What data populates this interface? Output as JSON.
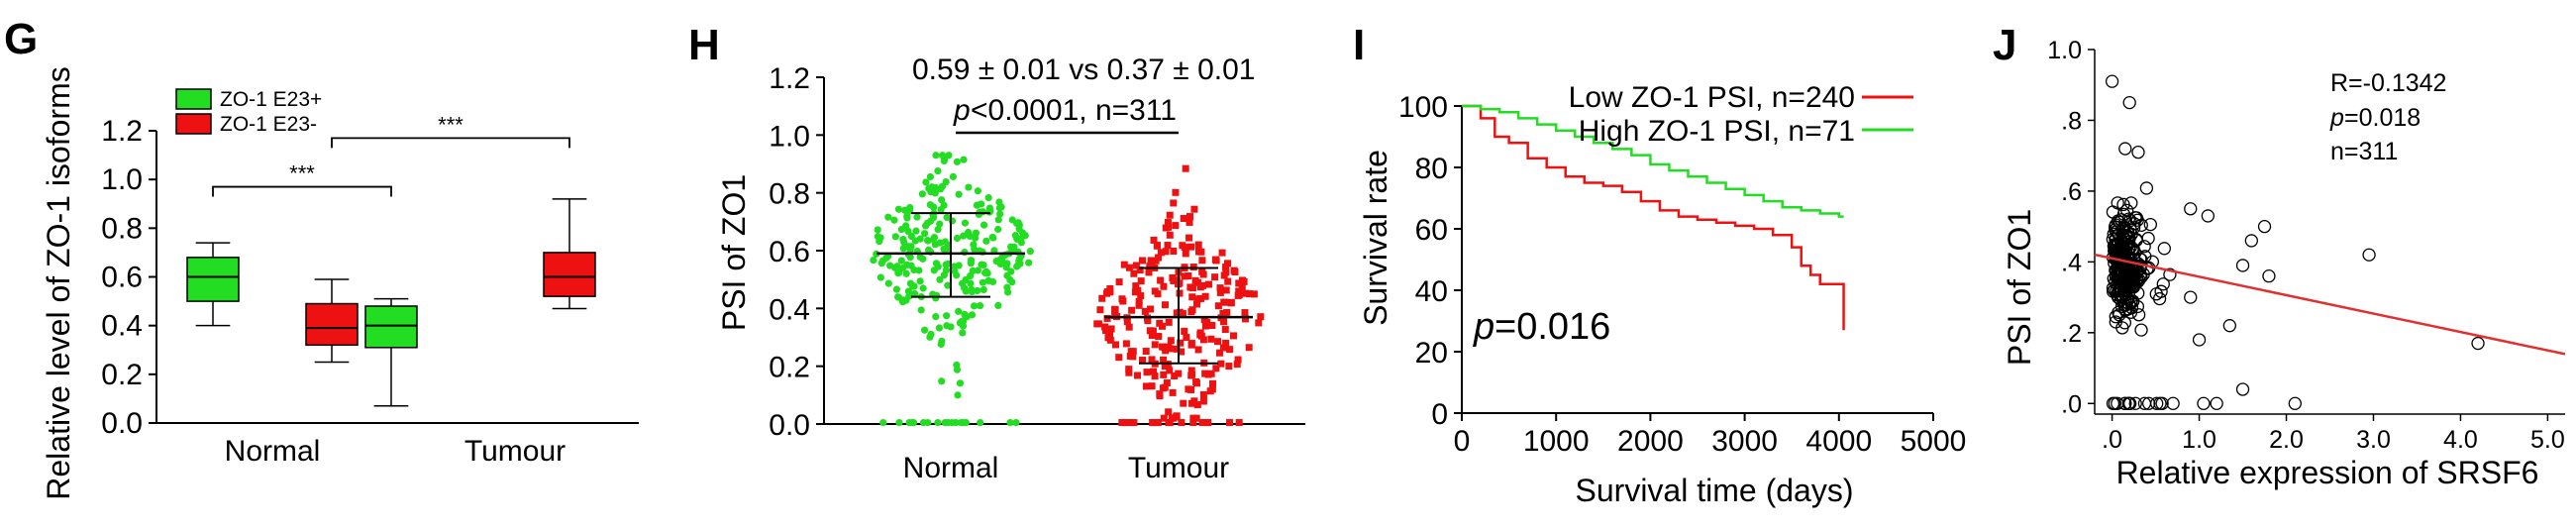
{
  "colors": {
    "green": "#22dd22",
    "red": "#ee1111",
    "axis": "#000000",
    "fit_line": "#e03030"
  },
  "chart_data": [
    {
      "panel": "G",
      "type": "box",
      "ylabel": "Relative level of ZO-1 isoforms",
      "ylim": [
        0.0,
        1.2
      ],
      "yticks": [
        "0.0",
        "0.2",
        "0.4",
        "0.6",
        "0.8",
        "1.0",
        "1.2"
      ],
      "categories": [
        "Normal",
        "Tumour"
      ],
      "legend": [
        "ZO-1 E23+",
        "ZO-1 E23-"
      ],
      "series": [
        {
          "name": "ZO-1 E23+",
          "color": "#22dd22",
          "boxes": [
            {
              "min": 0.4,
              "q1": 0.5,
              "median": 0.6,
              "q3": 0.68,
              "max": 0.74
            },
            {
              "min": 0.07,
              "q1": 0.31,
              "median": 0.4,
              "q3": 0.48,
              "max": 0.51
            }
          ]
        },
        {
          "name": "ZO-1 E23-",
          "color": "#ee1111",
          "boxes": [
            {
              "min": 0.25,
              "q1": 0.32,
              "median": 0.39,
              "q3": 0.49,
              "max": 0.59
            },
            {
              "min": 0.47,
              "q1": 0.52,
              "median": 0.6,
              "q3": 0.7,
              "max": 0.92
            }
          ]
        }
      ],
      "comparisons": [
        {
          "from": "Normal ZO-1 E23+",
          "to": "Tumour ZO-1 E23+",
          "label": "***",
          "level": 0.97
        },
        {
          "from": "Normal ZO-1 E23-",
          "to": "Tumour ZO-1 E23-",
          "label": "***",
          "level": 1.17
        }
      ]
    },
    {
      "panel": "H",
      "type": "scatter",
      "ylabel": "PSI of ZO1",
      "ylim": [
        0.0,
        1.2
      ],
      "yticks": [
        "0.0",
        "0.2",
        "0.4",
        "0.6",
        "0.8",
        "1.0",
        "1.2"
      ],
      "categories": [
        "Normal",
        "Tumour"
      ],
      "annotation_line1": "0.59 ± 0.01  vs   0.37 ± 0.01",
      "annotation_p": "p",
      "annotation_line2": "<0.0001, n=311",
      "groups": [
        {
          "name": "Normal",
          "color": "#22dd22",
          "mean": 0.59,
          "sd_low": 0.44,
          "sd_high": 0.73,
          "n": 311,
          "min": 0.0,
          "max": 0.93
        },
        {
          "name": "Tumour",
          "color": "#ee1111",
          "mean": 0.37,
          "sd_low": 0.21,
          "sd_high": 0.54,
          "n": 311,
          "min": 0.0,
          "max": 0.91
        }
      ]
    },
    {
      "panel": "I",
      "type": "line",
      "xlabel": "Survival time (days)",
      "ylabel": "Survival rate",
      "xlim": [
        0,
        5000
      ],
      "ylim": [
        0,
        100
      ],
      "xticks": [
        "0",
        "1000",
        "2000",
        "3000",
        "4000",
        "5000"
      ],
      "yticks": [
        "0",
        "20",
        "40",
        "60",
        "80",
        "100"
      ],
      "p_label": "p",
      "p_value": "=0.016",
      "series": [
        {
          "name": "Low ZO-1 PSI, n=240",
          "color": "#ee1111",
          "x": [
            0,
            200,
            350,
            500,
            700,
            900,
            1100,
            1300,
            1500,
            1700,
            1900,
            2100,
            2300,
            2500,
            2700,
            2900,
            3100,
            3300,
            3500,
            3600,
            3700,
            3800,
            3900,
            4000,
            4050
          ],
          "y": [
            100,
            96,
            90,
            88,
            83,
            80,
            77,
            75,
            74,
            72,
            69,
            66,
            64,
            63,
            62,
            61,
            60,
            58,
            54,
            48,
            45,
            42,
            42,
            42,
            27
          ]
        },
        {
          "name": "High ZO-1 PSI, n=71",
          "color": "#22dd22",
          "x": [
            0,
            200,
            400,
            600,
            800,
            1000,
            1200,
            1400,
            1600,
            1800,
            2000,
            2200,
            2400,
            2600,
            2800,
            3000,
            3200,
            3400,
            3600,
            3800,
            4000,
            4050
          ],
          "y": [
            100,
            99,
            98,
            96,
            94,
            92,
            90,
            88,
            86,
            84,
            81,
            79,
            77,
            75,
            73,
            71,
            69,
            67,
            66,
            65,
            64,
            64
          ]
        }
      ]
    },
    {
      "panel": "J",
      "type": "scatter",
      "xlabel": "Relative expression of SRSF6",
      "ylabel": "PSI of ZO1",
      "xlim": [
        -0.2,
        5.2
      ],
      "ylim": [
        -0.03,
        1.0
      ],
      "xticks": [
        ".0",
        "1.0",
        "2.0",
        "3.0",
        "4.0",
        "5.0"
      ],
      "yticks": [
        ".0",
        ".2",
        ".4",
        ".6",
        ".8",
        "1.0"
      ],
      "stat_r": "R=-0.1342",
      "stat_p_label": "p",
      "stat_p_value": "=0.018",
      "stat_n": "n=311",
      "regression": {
        "intercept": 0.41,
        "slope": -0.052
      },
      "outliers": [
        [
          0.0,
          0.91
        ],
        [
          0.2,
          0.85
        ],
        [
          0.15,
          0.72
        ],
        [
          0.3,
          0.71
        ],
        [
          0.9,
          0.55
        ],
        [
          1.1,
          0.53
        ],
        [
          1.6,
          0.46
        ],
        [
          1.75,
          0.5
        ],
        [
          1.8,
          0.36
        ],
        [
          1.5,
          0.39
        ],
        [
          2.95,
          0.42
        ],
        [
          4.2,
          0.17
        ],
        [
          1.35,
          0.22
        ],
        [
          1.5,
          0.04
        ],
        [
          2.1,
          0.0
        ],
        [
          1.05,
          0.0
        ],
        [
          1.2,
          0.0
        ],
        [
          0.55,
          0.0
        ],
        [
          0.7,
          0.0
        ],
        [
          0.9,
          0.3
        ],
        [
          1.0,
          0.18
        ]
      ]
    }
  ]
}
